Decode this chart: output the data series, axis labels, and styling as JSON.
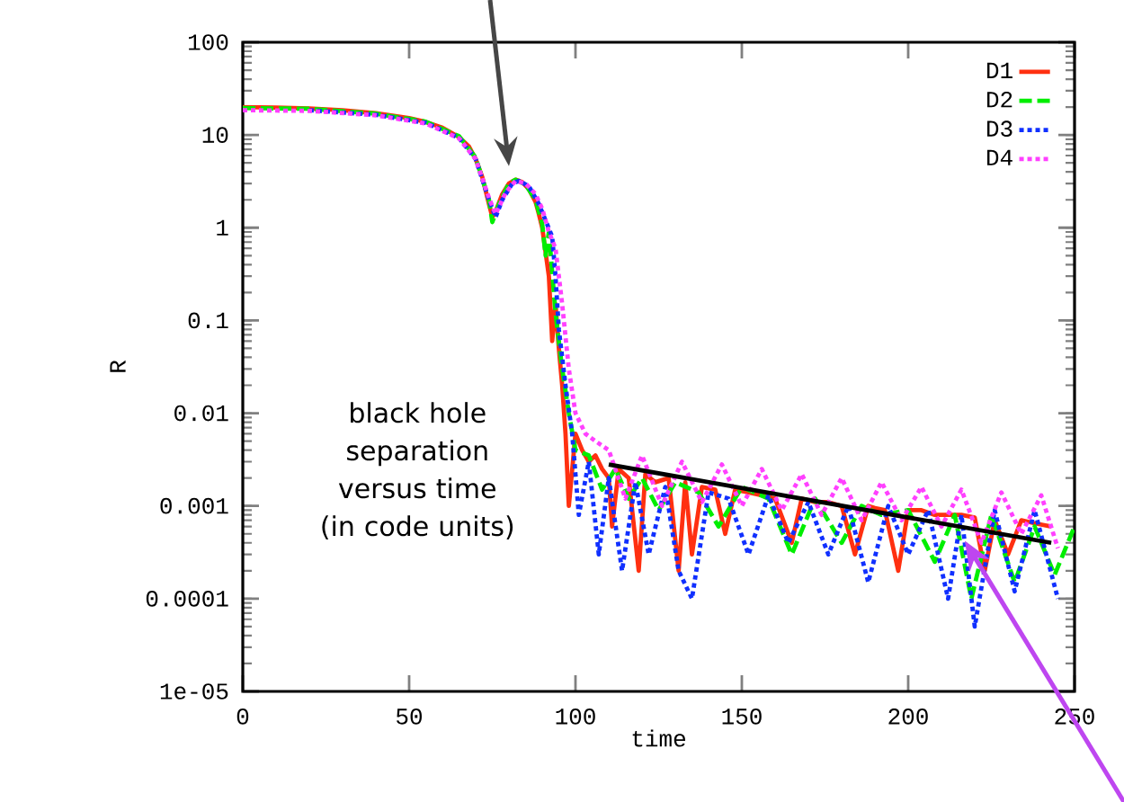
{
  "chart_data": {
    "type": "line",
    "xlabel": "time",
    "ylabel": "R",
    "log": "y",
    "xlim": [
      0,
      250
    ],
    "xticks": [
      0,
      50,
      100,
      150,
      200,
      250
    ],
    "ylim": [
      1e-05,
      100
    ],
    "yticks": [
      {
        "value": 1e-05,
        "label": "1e-05"
      },
      {
        "value": 0.0001,
        "label": "0.0001"
      },
      {
        "value": 0.001,
        "label": "0.001"
      },
      {
        "value": 0.01,
        "label": "0.01"
      },
      {
        "value": 0.1,
        "label": "0.1"
      },
      {
        "value": 1,
        "label": "1"
      },
      {
        "value": 10,
        "label": "10"
      },
      {
        "value": 100,
        "label": "100"
      }
    ],
    "legend": "top right",
    "grid": false,
    "annotations": [
      "black hole separation versus time (in code units)"
    ],
    "series": [
      {
        "name": "D1",
        "color": "#ff3010",
        "line_style": "solid",
        "x": [
          0,
          10,
          20,
          30,
          40,
          50,
          55,
          60,
          65,
          68,
          70,
          72,
          74,
          75,
          76,
          78,
          80,
          82,
          84,
          86,
          88,
          89,
          90,
          92,
          93,
          94,
          95,
          96,
          97,
          98,
          100,
          102,
          104,
          106,
          108,
          110,
          111,
          113,
          116,
          119,
          121,
          124,
          128,
          131,
          133,
          135,
          138,
          142,
          145,
          148,
          152,
          156,
          160,
          165,
          168,
          172,
          176,
          180,
          184,
          188,
          190,
          193,
          197,
          200,
          204,
          208,
          212,
          216,
          220,
          223,
          226,
          230,
          234,
          238,
          243
        ],
        "values": [
          20,
          19.8,
          19.3,
          18.5,
          17.2,
          15.2,
          13.8,
          12,
          9.5,
          7.5,
          5.5,
          3.5,
          1.8,
          1.3,
          1.5,
          2.3,
          3,
          3.3,
          3.1,
          2.6,
          1.9,
          1.4,
          1,
          0.3,
          0.06,
          0.15,
          0.05,
          0.02,
          0.006,
          0.001,
          0.006,
          0.004,
          0.003,
          0.0035,
          0.0025,
          0.002,
          0.0006,
          0.0025,
          0.002,
          0.0002,
          0.0022,
          0.0018,
          0.002,
          0.0002,
          0.0018,
          0.0003,
          0.0016,
          0.0015,
          0.0005,
          0.0015,
          0.0014,
          0.0013,
          0.0012,
          0.0004,
          0.0012,
          0.0011,
          0.0011,
          0.001,
          0.0003,
          0.001,
          0.00095,
          0.0009,
          0.0002,
          0.0009,
          0.0009,
          0.0008,
          0.0008,
          0.0008,
          0.00075,
          0.0002,
          0.0007,
          0.0003,
          0.0007,
          0.00065,
          0.0006
        ]
      },
      {
        "name": "D2",
        "color": "#00ee00",
        "line_style": "dashed",
        "x": [
          0,
          20,
          40,
          55,
          65,
          70,
          74,
          75,
          77,
          80,
          82,
          85,
          88,
          90,
          91,
          92,
          94,
          96,
          98,
          100,
          104,
          108,
          112,
          116,
          120,
          125,
          130,
          137,
          143,
          150,
          158,
          165,
          172,
          180,
          186,
          192,
          200,
          208,
          214,
          219,
          225,
          232,
          238,
          244,
          250
        ],
        "values": [
          19.5,
          19.2,
          17,
          13.9,
          9.7,
          5.7,
          2,
          1.15,
          1.8,
          3,
          3.3,
          2.9,
          2,
          1.1,
          0.5,
          0.9,
          0.12,
          0.03,
          0.01,
          0.004,
          0.0035,
          0.0015,
          0.0025,
          0.0012,
          0.002,
          0.0009,
          0.0018,
          0.0014,
          0.0006,
          0.0016,
          0.0012,
          0.0003,
          0.0012,
          0.0004,
          0.001,
          0.0008,
          0.0009,
          0.00025,
          0.0008,
          0.0001,
          0.0008,
          0.00015,
          0.0006,
          0.00018,
          0.0006
        ]
      },
      {
        "name": "D3",
        "color": "#1030ff",
        "line_style": "dotted",
        "x": [
          20,
          40,
          55,
          65,
          70,
          74,
          76,
          78,
          81,
          83,
          86,
          89,
          91,
          93,
          94,
          95,
          97,
          99,
          101,
          104,
          107,
          110,
          114,
          118,
          122,
          127,
          131,
          135,
          140,
          146,
          152,
          158,
          164,
          170,
          176,
          182,
          188,
          194,
          200,
          206,
          212,
          216,
          220,
          226,
          232,
          238,
          245
        ],
        "values": [
          18.5,
          16.5,
          13.5,
          9.3,
          5.5,
          2,
          1.3,
          2,
          3,
          3.2,
          2.8,
          1.8,
          1.2,
          0.8,
          0.3,
          0.08,
          0.02,
          0.006,
          0.0008,
          0.003,
          0.0003,
          0.002,
          0.0002,
          0.0018,
          0.0003,
          0.0016,
          0.0002,
          0.0001,
          0.0014,
          0.0012,
          0.0003,
          0.0013,
          0.0004,
          0.0011,
          0.0003,
          0.001,
          0.00015,
          0.001,
          0.0003,
          0.0009,
          0.0001,
          0.0008,
          5e-05,
          0.0009,
          0.00012,
          0.0009,
          0.0001
        ]
      },
      {
        "name": "D4",
        "color": "#ff40ff",
        "line_style": "dotted",
        "x": [
          0,
          20,
          40,
          55,
          65,
          70,
          74,
          76,
          79,
          82,
          85,
          88,
          90,
          92,
          94,
          96,
          98,
          100,
          103,
          106,
          110,
          115,
          120,
          126,
          132,
          138,
          144,
          150,
          156,
          162,
          168,
          174,
          180,
          186,
          192,
          198,
          204,
          210,
          216,
          222,
          228,
          234,
          240,
          245
        ],
        "values": [
          18.5,
          18.2,
          16.3,
          13.3,
          9.2,
          5.5,
          2.1,
          1.4,
          2.4,
          3.2,
          3,
          2.3,
          1.6,
          0.9,
          0.6,
          0.15,
          0.03,
          0.01,
          0.006,
          0.005,
          0.004,
          0.0012,
          0.0035,
          0.001,
          0.003,
          0.0011,
          0.0028,
          0.001,
          0.0025,
          0.0009,
          0.0022,
          0.0008,
          0.002,
          0.0007,
          0.0018,
          0.0007,
          0.0016,
          0.0006,
          0.0015,
          0.0004,
          0.0014,
          0.0005,
          0.0013,
          0.00035
        ]
      },
      {
        "type": "line",
        "color": "#000000",
        "line_style": "solid",
        "x": [
          110,
          243
        ],
        "values": [
          0.0028,
          0.0004
        ]
      }
    ]
  }
}
